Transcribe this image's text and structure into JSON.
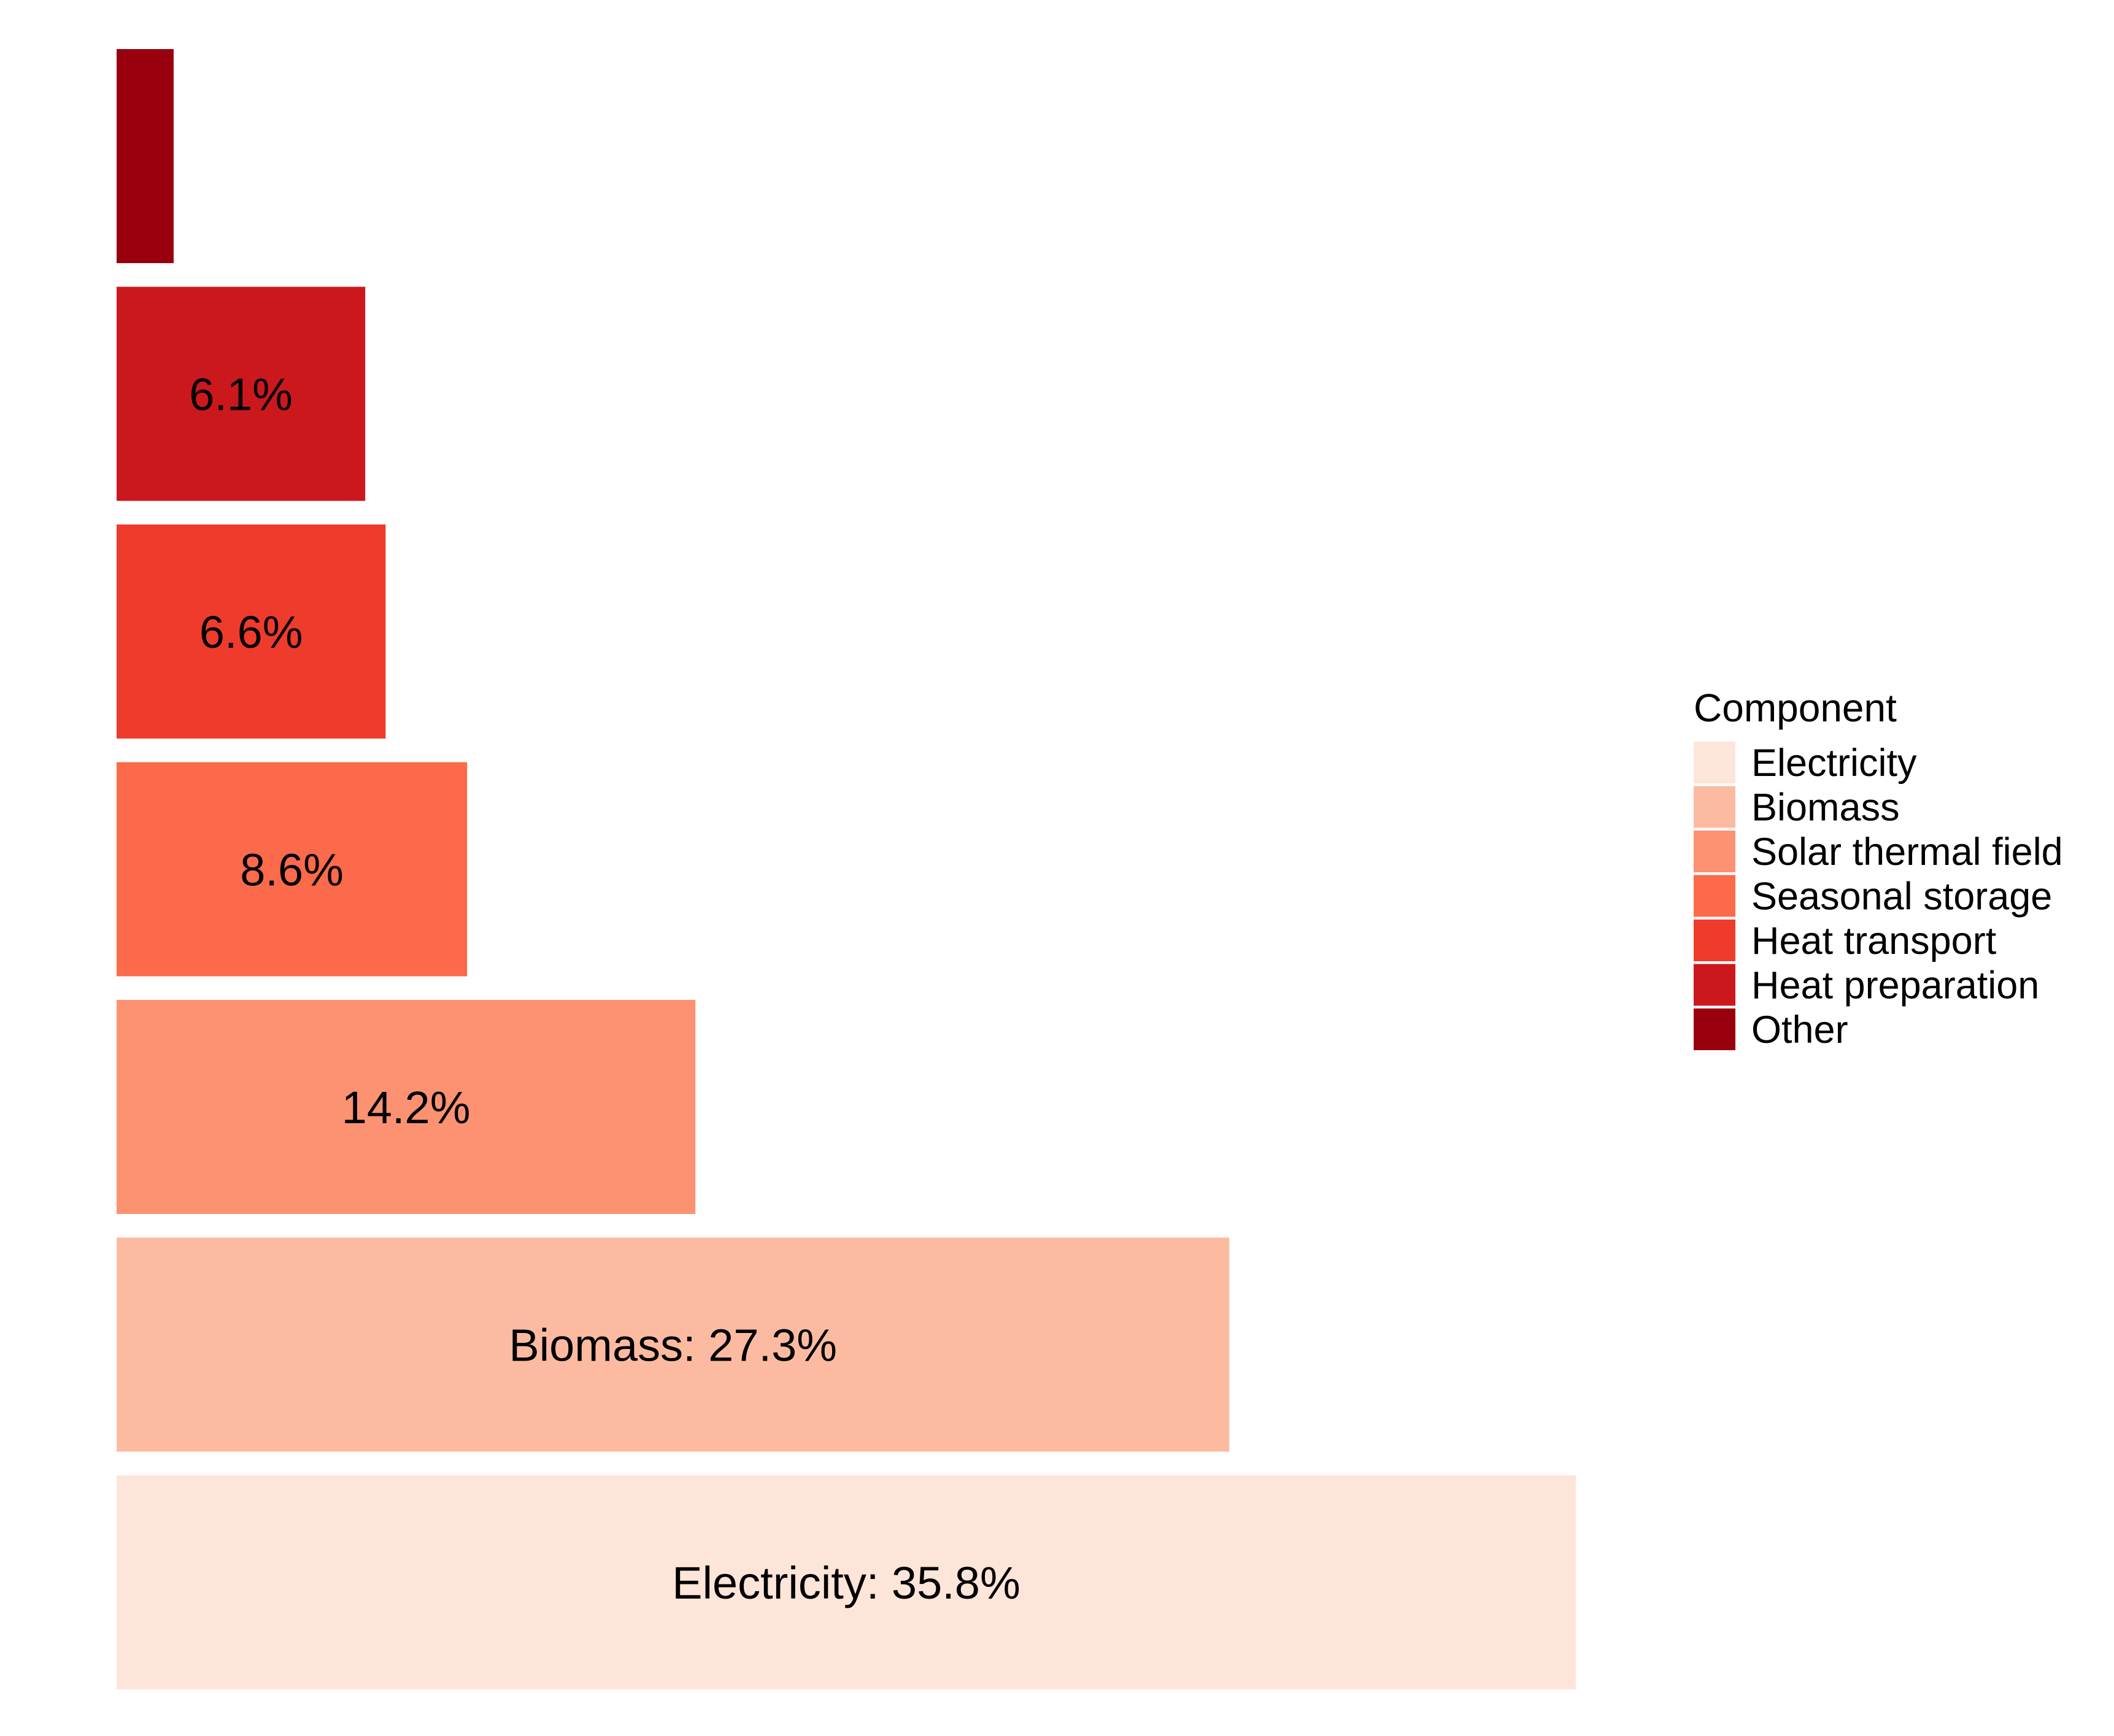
{
  "chart_data": {
    "type": "bar",
    "orientation": "horizontal",
    "categories": [
      "Electricity",
      "Biomass",
      "Solar thermal field",
      "Seasonal storage",
      "Heat transport",
      "Heat preparation",
      "Other"
    ],
    "values": [
      35.8,
      27.3,
      14.2,
      8.6,
      6.6,
      6.1,
      1.4
    ],
    "bar_labels": [
      "Electricity: 35.8%",
      "Biomass: 27.3%",
      "14.2%",
      "8.6%",
      "6.6%",
      "6.1%",
      ""
    ],
    "colors": [
      "#FEE5D9",
      "#FCBBA1",
      "#FC9272",
      "#FB6A4A",
      "#EF3B2C",
      "#CB181D",
      "#99000D"
    ],
    "unit": "%",
    "xlim": [
      0,
      35.8
    ],
    "grid": false,
    "axes_visible": false,
    "legend": {
      "title": "Component",
      "placement": "right",
      "entries": [
        "Electricity",
        "Biomass",
        "Solar thermal field",
        "Seasonal storage",
        "Heat transport",
        "Heat preparation",
        "Other"
      ]
    }
  }
}
